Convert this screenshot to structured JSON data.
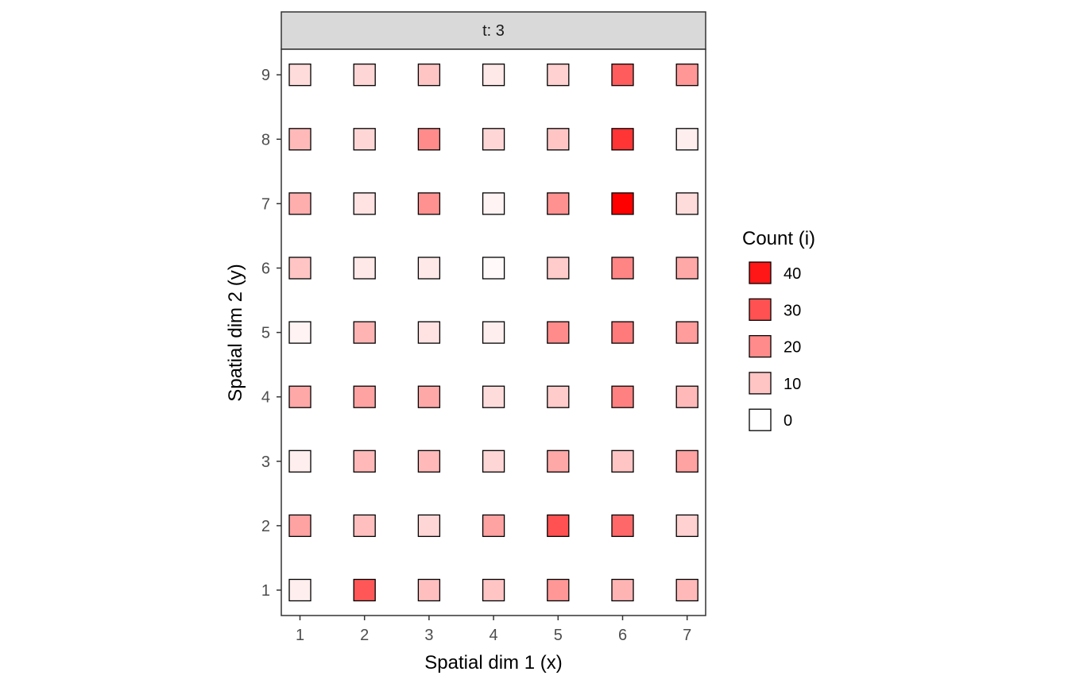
{
  "chart_data": {
    "type": "heatmap",
    "facet_label": "t: 3",
    "xlabel": "Spatial dim 1 (x)",
    "ylabel": "Spatial dim 2 (y)",
    "x_ticks": [
      "1",
      "2",
      "3",
      "4",
      "5",
      "6",
      "7"
    ],
    "y_ticks": [
      "1",
      "2",
      "3",
      "4",
      "5",
      "6",
      "7",
      "8",
      "9"
    ],
    "xlim": [
      1,
      7
    ],
    "ylim": [
      1,
      9
    ],
    "grid": false,
    "legend": {
      "title": "Count (i)",
      "placement": "right",
      "entries": [
        {
          "label": "40",
          "value": 40
        },
        {
          "label": "30",
          "value": 30
        },
        {
          "label": "20",
          "value": 20
        },
        {
          "label": "10",
          "value": 10
        },
        {
          "label": "0",
          "value": 0
        }
      ]
    },
    "color_scale": {
      "low": "#ffffff",
      "high": "#ff0000",
      "max": 44
    },
    "cells": [
      {
        "x": 1,
        "y": 9,
        "value": 6
      },
      {
        "x": 2,
        "y": 9,
        "value": 7
      },
      {
        "x": 3,
        "y": 9,
        "value": 10
      },
      {
        "x": 4,
        "y": 9,
        "value": 4
      },
      {
        "x": 5,
        "y": 9,
        "value": 8
      },
      {
        "x": 6,
        "y": 9,
        "value": 28
      },
      {
        "x": 7,
        "y": 9,
        "value": 18
      },
      {
        "x": 1,
        "y": 8,
        "value": 12
      },
      {
        "x": 2,
        "y": 8,
        "value": 7
      },
      {
        "x": 3,
        "y": 8,
        "value": 20
      },
      {
        "x": 4,
        "y": 8,
        "value": 7
      },
      {
        "x": 5,
        "y": 8,
        "value": 10
      },
      {
        "x": 6,
        "y": 8,
        "value": 35
      },
      {
        "x": 7,
        "y": 8,
        "value": 3
      },
      {
        "x": 1,
        "y": 7,
        "value": 14
      },
      {
        "x": 2,
        "y": 7,
        "value": 5
      },
      {
        "x": 3,
        "y": 7,
        "value": 19
      },
      {
        "x": 4,
        "y": 7,
        "value": 2
      },
      {
        "x": 5,
        "y": 7,
        "value": 19
      },
      {
        "x": 6,
        "y": 7,
        "value": 44
      },
      {
        "x": 7,
        "y": 7,
        "value": 6
      },
      {
        "x": 1,
        "y": 6,
        "value": 10
      },
      {
        "x": 2,
        "y": 6,
        "value": 4
      },
      {
        "x": 3,
        "y": 6,
        "value": 4
      },
      {
        "x": 4,
        "y": 6,
        "value": 1
      },
      {
        "x": 5,
        "y": 6,
        "value": 9
      },
      {
        "x": 6,
        "y": 6,
        "value": 21
      },
      {
        "x": 7,
        "y": 6,
        "value": 15
      },
      {
        "x": 1,
        "y": 5,
        "value": 2
      },
      {
        "x": 2,
        "y": 5,
        "value": 13
      },
      {
        "x": 3,
        "y": 5,
        "value": 5
      },
      {
        "x": 4,
        "y": 5,
        "value": 3
      },
      {
        "x": 5,
        "y": 5,
        "value": 20
      },
      {
        "x": 6,
        "y": 5,
        "value": 23
      },
      {
        "x": 7,
        "y": 5,
        "value": 17
      },
      {
        "x": 1,
        "y": 4,
        "value": 15
      },
      {
        "x": 2,
        "y": 4,
        "value": 16
      },
      {
        "x": 3,
        "y": 4,
        "value": 15
      },
      {
        "x": 4,
        "y": 4,
        "value": 6
      },
      {
        "x": 5,
        "y": 4,
        "value": 9
      },
      {
        "x": 6,
        "y": 4,
        "value": 22
      },
      {
        "x": 7,
        "y": 4,
        "value": 12
      },
      {
        "x": 1,
        "y": 3,
        "value": 3
      },
      {
        "x": 2,
        "y": 3,
        "value": 12
      },
      {
        "x": 3,
        "y": 3,
        "value": 12
      },
      {
        "x": 4,
        "y": 3,
        "value": 7
      },
      {
        "x": 5,
        "y": 3,
        "value": 15
      },
      {
        "x": 6,
        "y": 3,
        "value": 10
      },
      {
        "x": 7,
        "y": 3,
        "value": 16
      },
      {
        "x": 1,
        "y": 2,
        "value": 16
      },
      {
        "x": 2,
        "y": 2,
        "value": 11
      },
      {
        "x": 3,
        "y": 2,
        "value": 7
      },
      {
        "x": 4,
        "y": 2,
        "value": 16
      },
      {
        "x": 5,
        "y": 2,
        "value": 30
      },
      {
        "x": 6,
        "y": 2,
        "value": 26
      },
      {
        "x": 7,
        "y": 2,
        "value": 8
      },
      {
        "x": 1,
        "y": 1,
        "value": 3
      },
      {
        "x": 2,
        "y": 1,
        "value": 29
      },
      {
        "x": 3,
        "y": 1,
        "value": 11
      },
      {
        "x": 4,
        "y": 1,
        "value": 10
      },
      {
        "x": 5,
        "y": 1,
        "value": 18
      },
      {
        "x": 6,
        "y": 1,
        "value": 13
      },
      {
        "x": 7,
        "y": 1,
        "value": 12
      }
    ]
  }
}
